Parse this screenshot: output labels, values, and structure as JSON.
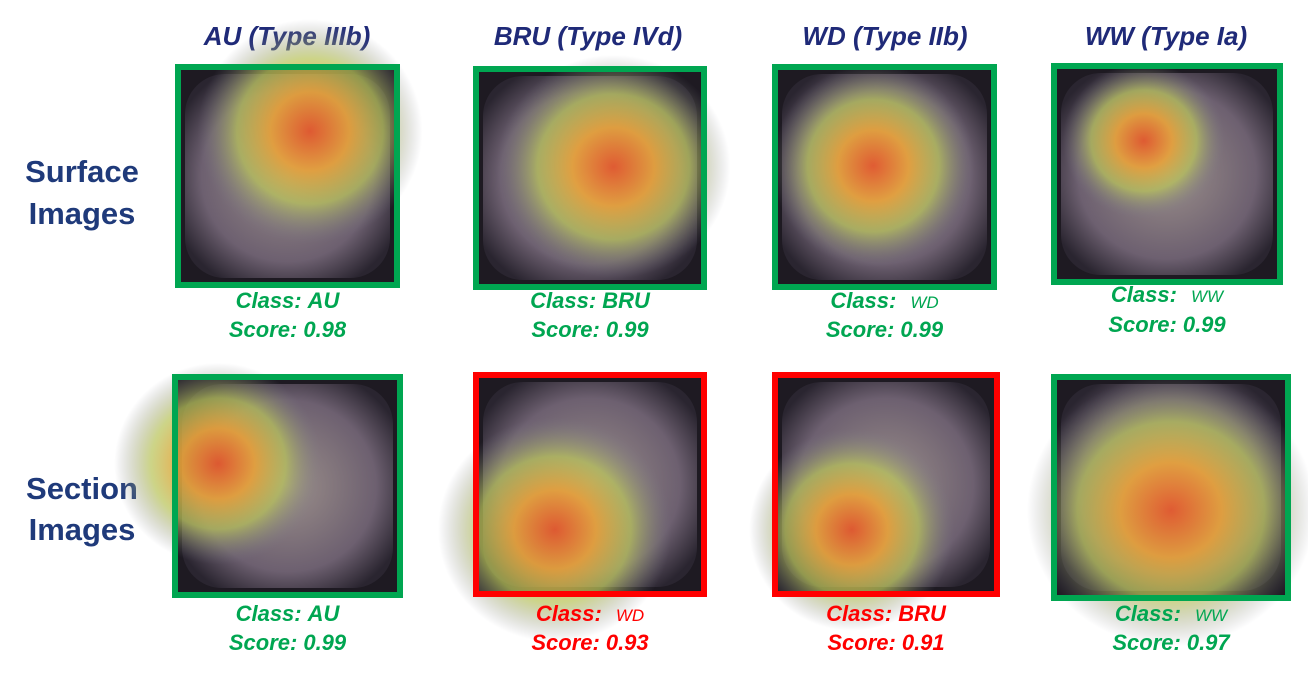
{
  "column_headers": [
    "AU (Type IIIb)",
    "BRU (Type IVd)",
    "WD (Type IIb)",
    "WW (Type Ia)"
  ],
  "row_labels": [
    [
      "Surface",
      "Images"
    ],
    [
      "Section",
      "Images"
    ]
  ],
  "rows": [
    [
      {
        "class_label": "Class:",
        "class": "AU",
        "score_label": "Score:",
        "score": 0.98,
        "color": "#00a651"
      },
      {
        "class_label": "Class:",
        "class": "BRU",
        "score_label": "Score:",
        "score": 0.99,
        "color": "#00a651"
      },
      {
        "class_label": "Class:",
        "class": "WD",
        "score_label": "Score:",
        "score": 0.99,
        "color": "#00a651"
      },
      {
        "class_label": "Class:",
        "class": "WW",
        "score_label": "Score:",
        "score": 0.99,
        "color": "#00a651"
      }
    ],
    [
      {
        "class_label": "Class:",
        "class": "AU",
        "score_label": "Score:",
        "score": 0.99,
        "color": "#00a651"
      },
      {
        "class_label": "Class:",
        "class": "WD",
        "score_label": "Score:",
        "score": 0.93,
        "color": "#ff0000"
      },
      {
        "class_label": "Class:",
        "class": "BRU",
        "score_label": "Score:",
        "score": 0.91,
        "color": "#ff0000"
      },
      {
        "class_label": "Class:",
        "class": "WW",
        "score_label": "Score:",
        "score": 0.97,
        "color": "#00a651"
      }
    ]
  ]
}
